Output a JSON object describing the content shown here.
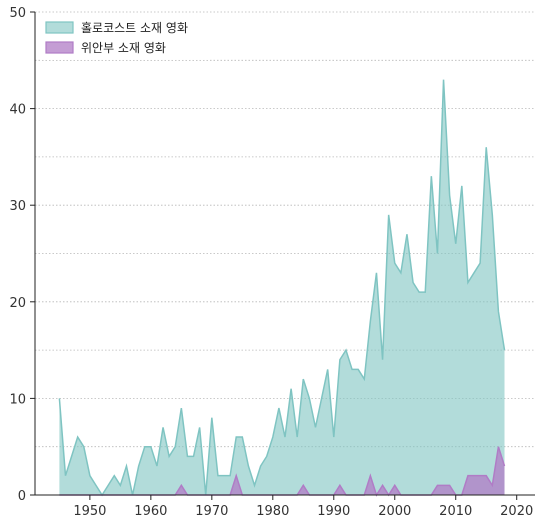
{
  "chart_data": {
    "type": "area",
    "title": "",
    "xlabel": "",
    "ylabel": "",
    "xlim": [
      1941,
      2023
    ],
    "ylim": [
      0,
      50
    ],
    "x_ticks": [
      1950,
      1960,
      1970,
      1980,
      1990,
      2000,
      2010,
      2020
    ],
    "y_ticks": [
      0,
      10,
      20,
      30,
      40,
      50
    ],
    "grid": "horizontal dotted",
    "legend_position": "top-left",
    "series": [
      {
        "name": "홀로코스트 소재 영화",
        "color": "#7fc4c2",
        "points": [
          [
            1945,
            10
          ],
          [
            1946,
            2
          ],
          [
            1947,
            4
          ],
          [
            1948,
            6
          ],
          [
            1949,
            5
          ],
          [
            1950,
            2
          ],
          [
            1951,
            1
          ],
          [
            1952,
            0
          ],
          [
            1953,
            1
          ],
          [
            1954,
            2
          ],
          [
            1955,
            1
          ],
          [
            1956,
            3
          ],
          [
            1957,
            0
          ],
          [
            1958,
            3
          ],
          [
            1959,
            5
          ],
          [
            1960,
            5
          ],
          [
            1961,
            3
          ],
          [
            1962,
            7
          ],
          [
            1963,
            4
          ],
          [
            1964,
            5
          ],
          [
            1965,
            9
          ],
          [
            1966,
            4
          ],
          [
            1967,
            4
          ],
          [
            1968,
            7
          ],
          [
            1969,
            0
          ],
          [
            1970,
            8
          ],
          [
            1971,
            2
          ],
          [
            1972,
            2
          ],
          [
            1973,
            2
          ],
          [
            1974,
            6
          ],
          [
            1975,
            6
          ],
          [
            1976,
            3
          ],
          [
            1977,
            1
          ],
          [
            1978,
            3
          ],
          [
            1979,
            4
          ],
          [
            1980,
            6
          ],
          [
            1981,
            9
          ],
          [
            1982,
            6
          ],
          [
            1983,
            11
          ],
          [
            1984,
            6
          ],
          [
            1985,
            12
          ],
          [
            1986,
            10
          ],
          [
            1987,
            7
          ],
          [
            1988,
            10
          ],
          [
            1989,
            13
          ],
          [
            1990,
            6
          ],
          [
            1991,
            14
          ],
          [
            1992,
            15
          ],
          [
            1993,
            13
          ],
          [
            1994,
            13
          ],
          [
            1995,
            12
          ],
          [
            1996,
            18
          ],
          [
            1997,
            23
          ],
          [
            1998,
            14
          ],
          [
            1999,
            29
          ],
          [
            2000,
            24
          ],
          [
            2001,
            23
          ],
          [
            2002,
            27
          ],
          [
            2003,
            22
          ],
          [
            2004,
            21
          ],
          [
            2005,
            21
          ],
          [
            2006,
            33
          ],
          [
            2007,
            25
          ],
          [
            2008,
            43
          ],
          [
            2009,
            31
          ],
          [
            2010,
            26
          ],
          [
            2011,
            32
          ],
          [
            2012,
            22
          ],
          [
            2013,
            23
          ],
          [
            2014,
            24
          ],
          [
            2015,
            36
          ],
          [
            2016,
            29
          ],
          [
            2017,
            19
          ],
          [
            2018,
            15
          ]
        ]
      },
      {
        "name": "위안부 소재 영화",
        "color": "#b07cc6",
        "points": [
          [
            1945,
            0
          ],
          [
            1964,
            0
          ],
          [
            1965,
            1
          ],
          [
            1966,
            0
          ],
          [
            1973,
            0
          ],
          [
            1974,
            2
          ],
          [
            1975,
            0
          ],
          [
            1984,
            0
          ],
          [
            1985,
            1
          ],
          [
            1986,
            0
          ],
          [
            1990,
            0
          ],
          [
            1991,
            1
          ],
          [
            1992,
            0
          ],
          [
            1995,
            0
          ],
          [
            1996,
            2
          ],
          [
            1997,
            0
          ],
          [
            1998,
            1
          ],
          [
            1999,
            0
          ],
          [
            2000,
            1
          ],
          [
            2001,
            0
          ],
          [
            2006,
            0
          ],
          [
            2007,
            1
          ],
          [
            2008,
            1
          ],
          [
            2009,
            1
          ],
          [
            2010,
            0
          ],
          [
            2011,
            0
          ],
          [
            2012,
            2
          ],
          [
            2013,
            2
          ],
          [
            2014,
            2
          ],
          [
            2015,
            2
          ],
          [
            2016,
            1
          ],
          [
            2017,
            5
          ],
          [
            2018,
            3
          ]
        ]
      }
    ]
  }
}
